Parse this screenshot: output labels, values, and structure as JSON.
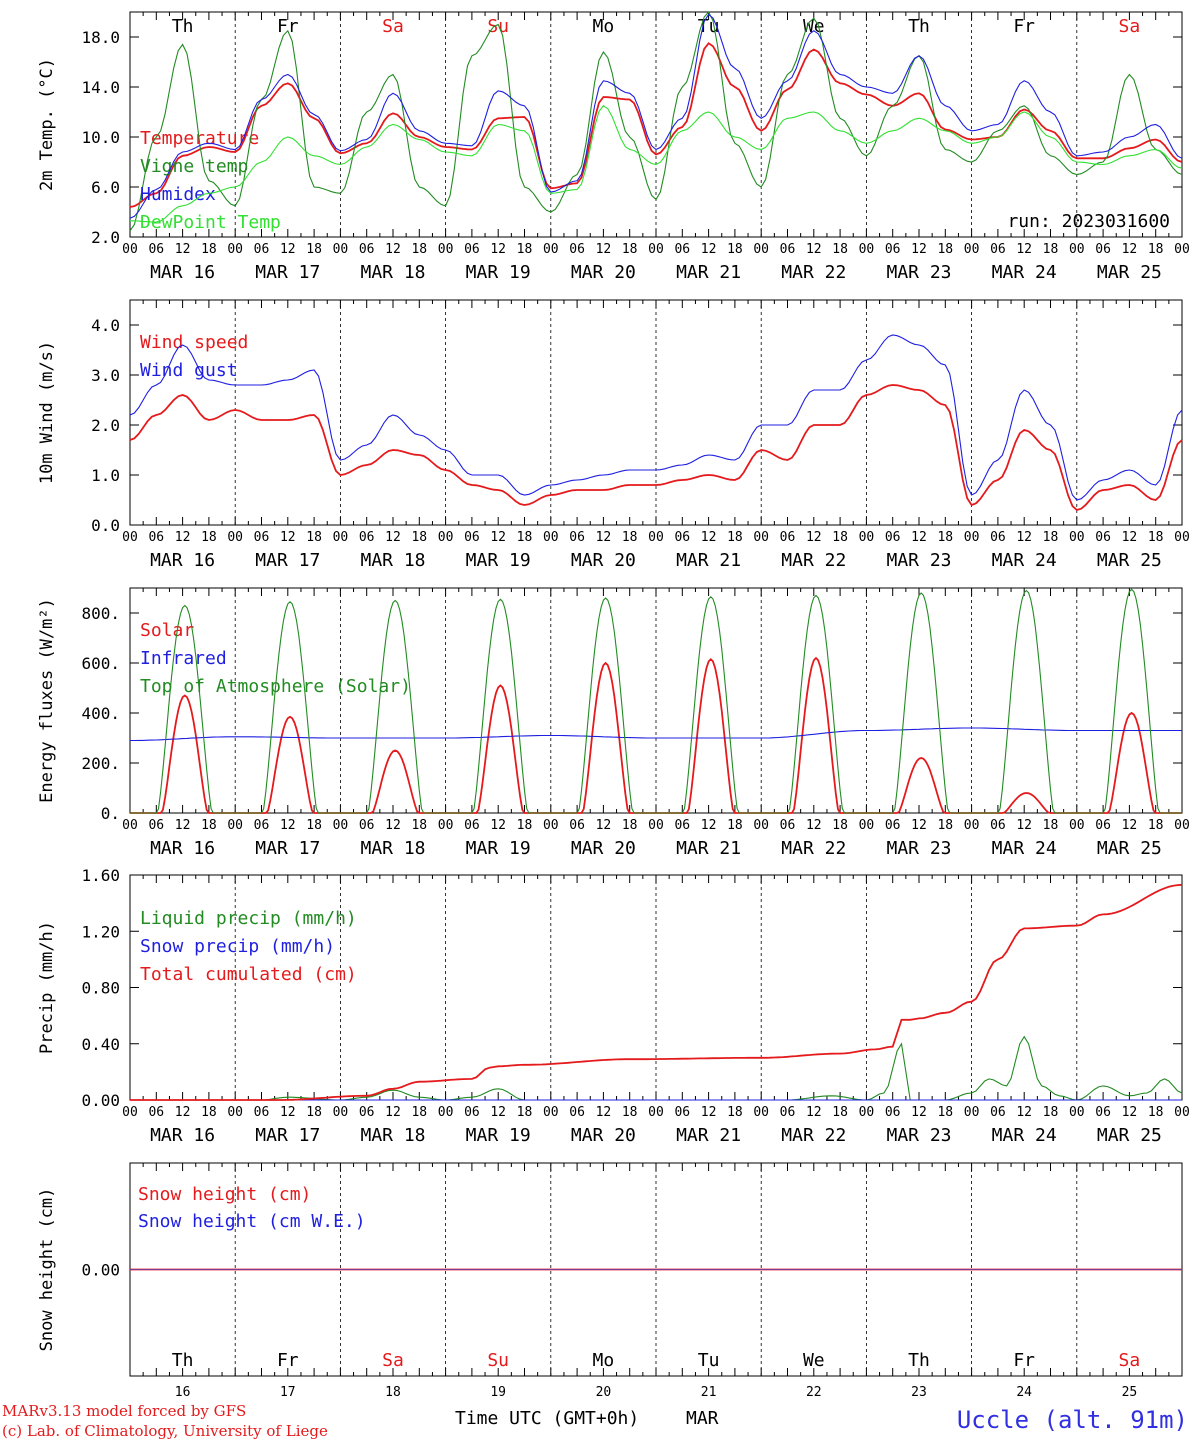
{
  "days": [
    "Th",
    "Fr",
    "Sa",
    "Su",
    "Mo",
    "Tu",
    "We",
    "Th",
    "Fr",
    "Sa"
  ],
  "weekend_days": [
    2,
    3,
    9
  ],
  "dates": [
    "MAR 16",
    "MAR 17",
    "MAR 18",
    "MAR 19",
    "MAR 20",
    "MAR 21",
    "MAR 22",
    "MAR 23",
    "MAR 24",
    "MAR 25"
  ],
  "day_numbers": [
    "16",
    "17",
    "18",
    "19",
    "20",
    "21",
    "22",
    "23",
    "24",
    "25"
  ],
  "hour_ticks": [
    "00",
    "06",
    "12",
    "18"
  ],
  "final_tick": "00",
  "colors": {
    "red": "#e41a1c",
    "darkgreen": "#228b22",
    "blue": "#1f1fe0",
    "lightgreen": "#32e032",
    "purple": "#7a3b9a"
  },
  "footer": {
    "model": "MARv3.13 model forced by GFS",
    "credit": "(c) Lab. of Climatology, University of Liege",
    "time_label": "Time UTC (GMT+0h)",
    "month": "MAR",
    "station": "Uccle (alt. 91m)"
  },
  "chart_data": [
    {
      "type": "line",
      "ylabel": "2m Temp. (°C)",
      "yticks": [
        "2.0",
        "6.0",
        "10.0",
        "14.0",
        "18.0"
      ],
      "ylim": [
        2,
        20
      ],
      "annotation": "run: 2023031600",
      "series": [
        {
          "name": "Temperature",
          "color": "red",
          "x": [
            0,
            6,
            12,
            18,
            24,
            30,
            36,
            42,
            48,
            54,
            60,
            66,
            72,
            78,
            84,
            90,
            96,
            102,
            108,
            114,
            120,
            126,
            132,
            138,
            144,
            150,
            156,
            162,
            168,
            174,
            180,
            186,
            192,
            198,
            204,
            210,
            216,
            222,
            228,
            234,
            240
          ],
          "y": [
            4.4,
            5.5,
            8.5,
            9.2,
            8.8,
            12.5,
            14.3,
            11.5,
            8.7,
            9.5,
            11.9,
            10.0,
            9.2,
            9.0,
            11.5,
            11.6,
            5.9,
            6.3,
            13.2,
            13.0,
            8.6,
            10.8,
            17.5,
            14.0,
            10.5,
            13.8,
            17.0,
            14.3,
            13.4,
            12.5,
            13.5,
            10.6,
            9.8,
            10.0,
            12.2,
            10.5,
            8.3,
            8.3,
            9.1,
            9.8,
            8.0
          ]
        },
        {
          "name": "Vigne temp",
          "color": "darkgreen",
          "x": [
            0,
            6,
            12,
            18,
            24,
            30,
            36,
            42,
            48,
            54,
            60,
            66,
            72,
            78,
            84,
            90,
            96,
            102,
            108,
            114,
            120,
            126,
            132,
            138,
            144,
            150,
            156,
            162,
            168,
            174,
            180,
            186,
            192,
            198,
            204,
            210,
            216,
            222,
            228,
            234,
            240
          ],
          "y": [
            2.5,
            10.0,
            17.4,
            6.5,
            4.5,
            13.0,
            18.5,
            6.0,
            5.5,
            12.0,
            15.0,
            6.0,
            4.5,
            16.5,
            19.0,
            6.0,
            4.0,
            7.0,
            16.8,
            10.0,
            5.0,
            14.0,
            20.0,
            9.5,
            6.0,
            15.0,
            19.5,
            11.5,
            8.5,
            12.5,
            16.5,
            9.0,
            8.0,
            10.5,
            12.5,
            8.5,
            7.0,
            8.0,
            15.0,
            9.0,
            7.0
          ]
        },
        {
          "name": "Humidex",
          "color": "blue",
          "x": [
            0,
            6,
            12,
            18,
            24,
            30,
            36,
            42,
            48,
            54,
            60,
            66,
            72,
            78,
            84,
            90,
            96,
            102,
            108,
            114,
            120,
            126,
            132,
            138,
            144,
            150,
            156,
            162,
            168,
            174,
            180,
            186,
            192,
            198,
            204,
            210,
            216,
            222,
            228,
            234,
            240
          ],
          "y": [
            3.5,
            5.8,
            8.8,
            9.5,
            9.0,
            13.0,
            15.0,
            11.8,
            8.9,
            9.8,
            13.5,
            10.5,
            9.5,
            9.3,
            13.7,
            12.5,
            5.6,
            6.5,
            14.5,
            13.5,
            9.0,
            11.5,
            19.8,
            15.5,
            11.5,
            14.5,
            18.5,
            15.0,
            14.0,
            13.5,
            16.5,
            12.5,
            10.5,
            11.0,
            14.5,
            12.0,
            8.5,
            8.8,
            10.0,
            11.0,
            8.3
          ]
        },
        {
          "name": "DewPoint Temp",
          "color": "lightgreen",
          "x": [
            0,
            6,
            12,
            18,
            24,
            30,
            36,
            42,
            48,
            54,
            60,
            66,
            72,
            78,
            84,
            90,
            96,
            102,
            108,
            114,
            120,
            126,
            132,
            138,
            144,
            150,
            156,
            162,
            168,
            174,
            180,
            186,
            192,
            198,
            204,
            210,
            216,
            222,
            228,
            234,
            240
          ],
          "y": [
            3.3,
            3.2,
            4.5,
            5.5,
            6.0,
            8.0,
            10.0,
            8.5,
            7.8,
            9.2,
            11.0,
            9.8,
            8.8,
            8.5,
            11.0,
            10.5,
            5.5,
            5.8,
            12.5,
            9.0,
            7.8,
            10.5,
            12.0,
            10.0,
            9.0,
            11.5,
            12.0,
            10.5,
            9.5,
            10.5,
            11.5,
            10.5,
            9.5,
            10.0,
            12.0,
            10.0,
            8.0,
            7.8,
            8.5,
            9.0,
            7.5
          ]
        }
      ]
    },
    {
      "type": "line",
      "ylabel": "10m Wind (m/s)",
      "yticks": [
        "0.0",
        "1.0",
        "2.0",
        "3.0",
        "4.0"
      ],
      "ylim": [
        0,
        4.5
      ],
      "series": [
        {
          "name": "Wind speed",
          "color": "red",
          "x": [
            0,
            6,
            12,
            18,
            24,
            30,
            36,
            42,
            48,
            54,
            60,
            66,
            72,
            78,
            84,
            90,
            96,
            102,
            108,
            114,
            120,
            126,
            132,
            138,
            144,
            150,
            156,
            162,
            168,
            174,
            180,
            186,
            192,
            198,
            204,
            210,
            216,
            222,
            228,
            234,
            240
          ],
          "y": [
            1.7,
            2.2,
            2.6,
            2.1,
            2.3,
            2.1,
            2.1,
            2.2,
            1.0,
            1.2,
            1.5,
            1.4,
            1.1,
            0.8,
            0.7,
            0.4,
            0.6,
            0.7,
            0.7,
            0.8,
            0.8,
            0.9,
            1.0,
            0.9,
            1.5,
            1.3,
            2.0,
            2.0,
            2.6,
            2.8,
            2.7,
            2.4,
            0.4,
            0.9,
            1.9,
            1.5,
            0.3,
            0.7,
            0.8,
            0.5,
            1.7
          ]
        },
        {
          "name": "Wind gust",
          "color": "blue",
          "x": [
            0,
            6,
            12,
            18,
            24,
            30,
            36,
            42,
            48,
            54,
            60,
            66,
            72,
            78,
            84,
            90,
            96,
            102,
            108,
            114,
            120,
            126,
            132,
            138,
            144,
            150,
            156,
            162,
            168,
            174,
            180,
            186,
            192,
            198,
            204,
            210,
            216,
            222,
            228,
            234,
            240
          ],
          "y": [
            2.2,
            2.8,
            3.6,
            2.9,
            2.8,
            2.8,
            2.9,
            3.1,
            1.3,
            1.6,
            2.2,
            1.8,
            1.5,
            1.0,
            1.0,
            0.6,
            0.8,
            0.9,
            1.0,
            1.1,
            1.1,
            1.2,
            1.4,
            1.3,
            2.0,
            2.0,
            2.7,
            2.7,
            3.3,
            3.8,
            3.6,
            3.2,
            0.6,
            1.3,
            2.7,
            2.0,
            0.5,
            0.9,
            1.1,
            0.8,
            2.3
          ]
        }
      ]
    },
    {
      "type": "line",
      "ylabel": "Energy fluxes (W/m²)",
      "yticks": [
        "0.",
        "200.",
        "400.",
        "600.",
        "800."
      ],
      "ylim": [
        0,
        900
      ],
      "series": [
        {
          "name": "Solar",
          "color": "red",
          "peaks": [
            470,
            385,
            250,
            510,
            600,
            615,
            620,
            220,
            80,
            400
          ]
        },
        {
          "name": "Infrared",
          "color": "blue",
          "x": [
            0,
            24,
            48,
            72,
            96,
            120,
            144,
            168,
            192,
            216,
            240
          ],
          "y": [
            290,
            305,
            300,
            300,
            310,
            300,
            300,
            330,
            340,
            330,
            330
          ]
        },
        {
          "name": "Top of Atmosphere (Solar)",
          "color": "darkgreen",
          "peaks": [
            830,
            845,
            850,
            855,
            860,
            865,
            870,
            880,
            890,
            895
          ]
        }
      ]
    },
    {
      "type": "line",
      "ylabel": "Precip (mm/h)",
      "yticks": [
        "0.00",
        "0.40",
        "0.80",
        "1.20",
        "1.60"
      ],
      "ylim": [
        0,
        1.6
      ],
      "series": [
        {
          "name": "Liquid precip (mm/h)",
          "color": "darkgreen",
          "x": [
            0,
            30,
            36,
            48,
            54,
            60,
            66,
            72,
            78,
            84,
            90,
            96,
            120,
            150,
            160,
            168,
            172,
            176,
            178,
            180,
            186,
            192,
            196,
            200,
            204,
            208,
            212,
            216,
            222,
            228,
            232,
            236,
            240
          ],
          "y": [
            0,
            0,
            0.02,
            0,
            0.02,
            0.07,
            0.02,
            0,
            0.02,
            0.08,
            0,
            0,
            0,
            0,
            0.03,
            0,
            0.05,
            0.4,
            0,
            0,
            0,
            0.05,
            0.15,
            0.1,
            0.45,
            0.1,
            0.03,
            0,
            0.1,
            0.03,
            0.05,
            0.15,
            0.05
          ]
        },
        {
          "name": "Snow precip (mm/h)",
          "color": "blue",
          "x": [
            0,
            240
          ],
          "y": [
            0,
            0
          ]
        },
        {
          "name": "Total cumulated (cm)",
          "color": "red",
          "x": [
            0,
            34,
            54,
            60,
            66,
            78,
            82,
            84,
            90,
            114,
            144,
            162,
            170,
            174,
            176,
            178,
            180,
            186,
            192,
            198,
            204,
            216,
            222,
            240
          ],
          "y": [
            0,
            0,
            0.03,
            0.08,
            0.13,
            0.15,
            0.23,
            0.24,
            0.25,
            0.29,
            0.3,
            0.33,
            0.36,
            0.38,
            0.57,
            0.57,
            0.58,
            0.62,
            0.7,
            1.0,
            1.22,
            1.24,
            1.32,
            1.53
          ]
        }
      ]
    },
    {
      "type": "line",
      "ylabel": "Snow height (cm)",
      "yticks": [
        "0.00"
      ],
      "ylim": [
        -1,
        1
      ],
      "series": [
        {
          "name": "Snow height (cm)",
          "color": "red",
          "x": [
            0,
            240
          ],
          "y": [
            0,
            0
          ]
        },
        {
          "name": "Snow height (cm W.E.)",
          "color": "blue",
          "x": [
            0,
            240
          ],
          "y": [
            0,
            0
          ]
        }
      ]
    }
  ]
}
